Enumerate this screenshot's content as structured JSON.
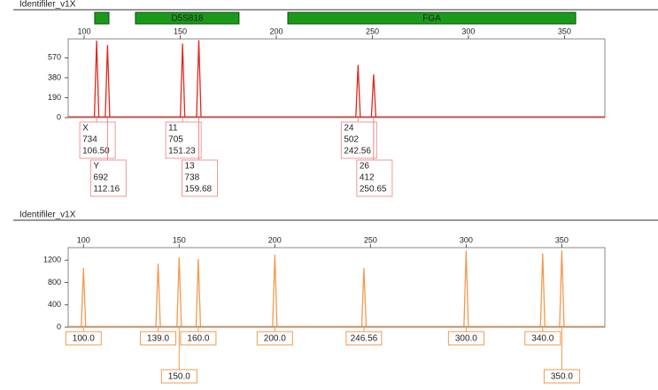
{
  "chart_data": [
    {
      "type": "peak",
      "title": "Identifiler_v1X",
      "markers": [
        {
          "range": [
            105.5,
            112.9
          ]
        },
        {
          "label": "D5S818",
          "range": [
            126.7,
            180.6
          ]
        },
        {
          "label": "FGA",
          "range": [
            206,
            355.8
          ]
        }
      ],
      "x": [
        106.5,
        112.16,
        151.23,
        159.68,
        242.56,
        250.65
      ],
      "x_labels": [
        "106.50",
        "112.16",
        "151.23",
        "159.68",
        "242.56",
        "250.65"
      ],
      "values": [
        734,
        692,
        705,
        738,
        502,
        412
      ],
      "alleles": [
        "X",
        "Y",
        "11",
        "13",
        "24",
        "26"
      ],
      "color": "#e0281e",
      "xlim": [
        91.7,
        371
      ],
      "xticks": [
        100,
        150,
        200,
        250,
        300,
        350
      ],
      "ylim": [
        0,
        750
      ],
      "yticks": [
        0,
        190,
        380,
        570
      ]
    },
    {
      "type": "peak",
      "title": "Identifiler_v1X",
      "x": [
        100,
        139,
        150,
        160,
        200,
        246.56,
        300,
        340,
        350
      ],
      "x_labels": [
        "100.0",
        "139.0",
        "150.0",
        "160.0",
        "200.0",
        "246.56",
        "300.0",
        "340.0",
        "350.0"
      ],
      "values": [
        1060,
        1140,
        1250,
        1220,
        1300,
        1060,
        1370,
        1320,
        1380
      ],
      "color": "#f39a4c",
      "xlim": [
        92,
        372.5
      ],
      "xticks": [
        100,
        150,
        200,
        250,
        300,
        350
      ],
      "ylim": [
        0,
        1425
      ],
      "yticks": [
        0,
        400,
        800,
        1200
      ]
    }
  ]
}
